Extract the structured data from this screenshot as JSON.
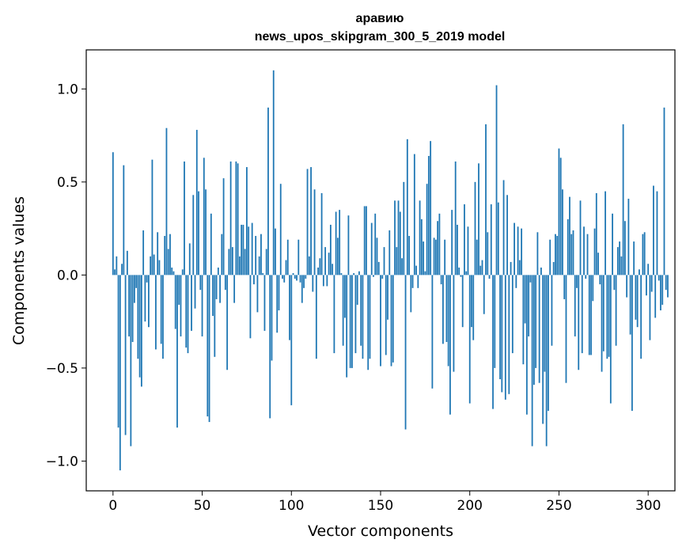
{
  "chart_data": {
    "type": "bar",
    "title_line1": "аравию",
    "title_line2": "news_upos_skipgram_300_5_2019 model",
    "xlabel": "Vector components",
    "ylabel": "Components values",
    "xlim": [
      -15,
      315
    ],
    "ylim": [
      -1.16,
      1.21
    ],
    "xticks": [
      0,
      50,
      100,
      150,
      200,
      250,
      300
    ],
    "xtick_labels": [
      "0",
      "50",
      "100",
      "150",
      "200",
      "250",
      "300"
    ],
    "yticks": [
      1.0,
      0.5,
      0.0,
      -0.5,
      -1.0
    ],
    "ytick_labels": [
      "1.0",
      "0.5",
      "0.0",
      "−0.5",
      "−1.0"
    ],
    "bar_color": "#1f77b4",
    "grid": false,
    "values": [
      0.66,
      0.03,
      0.1,
      -0.82,
      -1.05,
      0.06,
      0.59,
      -0.86,
      0.13,
      -0.33,
      -0.92,
      -0.36,
      -0.15,
      -0.07,
      -0.45,
      -0.55,
      -0.6,
      0.24,
      -0.25,
      -0.04,
      -0.28,
      0.1,
      0.62,
      0.11,
      -0.4,
      0.23,
      0.08,
      -0.37,
      -0.45,
      0.21,
      0.79,
      0.14,
      0.22,
      0.04,
      0.02,
      -0.29,
      -0.82,
      -0.16,
      -0.33,
      0.03,
      0.61,
      -0.39,
      -0.42,
      0.17,
      -0.3,
      0.43,
      -0.18,
      0.78,
      0.45,
      -0.08,
      -0.33,
      0.63,
      0.46,
      -0.76,
      -0.79,
      0.33,
      -0.22,
      -0.44,
      -0.13,
      0.04,
      -0.15,
      0.22,
      0.52,
      -0.08,
      -0.51,
      0.14,
      0.61,
      0.15,
      -0.15,
      0.61,
      0.6,
      0.1,
      0.27,
      0.27,
      0.14,
      0.58,
      0.26,
      -0.34,
      0.28,
      -0.05,
      0.21,
      -0.2,
      0.1,
      0.22,
      0.01,
      -0.3,
      0.14,
      0.9,
      -0.77,
      -0.46,
      1.1,
      0.25,
      -0.31,
      -0.19,
      0.49,
      -0.02,
      -0.04,
      0.08,
      0.19,
      -0.35,
      -0.7,
      0.01,
      -0.02,
      -0.03,
      0.19,
      -0.04,
      -0.15,
      -0.07,
      -0.02,
      0.57,
      0.1,
      0.58,
      -0.09,
      0.46,
      -0.45,
      0.04,
      0.09,
      0.44,
      -0.06,
      0.15,
      -0.06,
      0.12,
      0.27,
      0.06,
      -0.42,
      0.34,
      0.2,
      0.35,
      0.01,
      -0.38,
      -0.23,
      -0.55,
      0.32,
      -0.5,
      -0.5,
      0.01,
      -0.42,
      -0.16,
      0.02,
      -0.38,
      -0.45,
      0.37,
      0.37,
      -0.51,
      -0.45,
      0.28,
      -0.01,
      0.33,
      0.2,
      0.07,
      -0.49,
      -0.02,
      0.15,
      -0.43,
      -0.24,
      0.24,
      -0.49,
      -0.47,
      0.4,
      0.15,
      0.4,
      0.34,
      0.09,
      0.5,
      -0.83,
      0.73,
      0.21,
      -0.2,
      -0.07,
      0.65,
      0.05,
      -0.07,
      0.4,
      0.3,
      0.18,
      0.02,
      0.49,
      0.64,
      0.72,
      -0.61,
      0.2,
      0.19,
      0.29,
      0.33,
      -0.05,
      -0.37,
      0.19,
      -0.36,
      -0.49,
      -0.75,
      0.35,
      -0.52,
      0.61,
      0.27,
      0.04,
      -0.01,
      -0.28,
      0.38,
      0.02,
      0.26,
      -0.69,
      -0.28,
      -0.35,
      0.5,
      0.19,
      0.6,
      0.05,
      0.08,
      -0.21,
      0.81,
      0.23,
      -0.02,
      0.38,
      -0.72,
      -0.5,
      1.02,
      0.39,
      -0.56,
      -0.63,
      0.51,
      -0.67,
      0.43,
      -0.64,
      0.07,
      -0.42,
      0.28,
      -0.07,
      0.26,
      0.08,
      0.25,
      -0.48,
      -0.26,
      -0.75,
      -0.33,
      -0.04,
      -0.92,
      -0.59,
      -0.5,
      0.23,
      -0.58,
      0.04,
      -0.8,
      -0.52,
      -0.92,
      -0.73,
      0.19,
      -0.38,
      0.07,
      0.22,
      0.21,
      0.68,
      0.63,
      0.46,
      -0.13,
      -0.58,
      0.3,
      0.42,
      0.22,
      0.24,
      -0.33,
      -0.07,
      -0.51,
      0.4,
      -0.42,
      0.26,
      -0.02,
      0.22,
      -0.43,
      -0.43,
      -0.14,
      0.25,
      0.44,
      0.12,
      -0.05,
      -0.52,
      -0.41,
      0.45,
      -0.45,
      -0.44,
      -0.69,
      0.33,
      -0.08,
      -0.38,
      0.15,
      0.18,
      0.1,
      0.81,
      0.29,
      -0.12,
      0.41,
      -0.32,
      -0.73,
      0.18,
      -0.24,
      -0.28,
      0.03,
      -0.45,
      0.22,
      0.23,
      -0.11,
      0.06,
      -0.35,
      -0.09,
      0.48,
      -0.23,
      0.45,
      -0.03,
      -0.19,
      -0.16,
      0.9,
      -0.08,
      -0.12
    ]
  }
}
